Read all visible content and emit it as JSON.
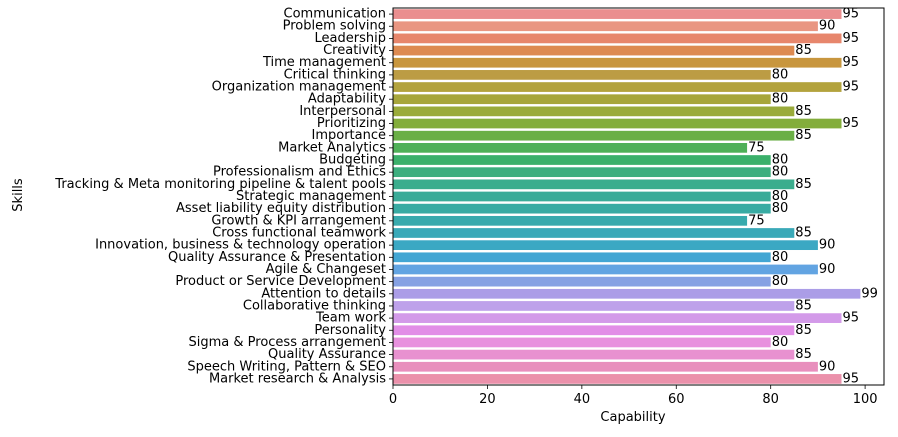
{
  "chart_data": {
    "type": "bar",
    "orientation": "horizontal",
    "xlabel": "Capability",
    "ylabel": "Skills",
    "xlim": [
      0,
      104
    ],
    "xticks": [
      0,
      20,
      40,
      60,
      80,
      100
    ],
    "grid": false,
    "legend": "none",
    "categories": [
      "Communication",
      "Problem solving",
      "Leadership",
      "Creativity",
      "Time management",
      "Critical thinking",
      "Organization management",
      "Adaptability",
      "Interpersonal",
      "Prioritizing",
      "Importance",
      "Market Analytics",
      "Budgeting",
      "Professionalism and Ethics",
      "Tracking & Meta monitoring pipeline & talent pools",
      "Strategic management",
      "Asset liability equity distribution",
      "Growth & KPI arrangement",
      "Cross functional teamwork",
      "Innovation, business & technology operation",
      "Quality Assurance & Presentation",
      "Agile & Changeset",
      "Product or Service Development",
      "Attention to details",
      "Collaborative thinking",
      "Team work",
      "Personality",
      "Sigma & Process arrangement",
      "Quality Assurance",
      "Speech Writing, Pattern & SEO",
      "Market research & Analysis"
    ],
    "values": [
      95,
      90,
      95,
      85,
      95,
      80,
      95,
      80,
      85,
      95,
      85,
      75,
      80,
      80,
      85,
      80,
      80,
      75,
      85,
      90,
      80,
      90,
      80,
      99,
      85,
      95,
      85,
      80,
      85,
      90,
      95
    ],
    "colors": [
      "#ea8e8f",
      "#e99682",
      "#e7866c",
      "#dd8a51",
      "#c8963e",
      "#bc9c44",
      "#b3a33d",
      "#a7a63b",
      "#9aab3b",
      "#83ad3b",
      "#6aaf46",
      "#4fb058",
      "#3bb06b",
      "#3cae7e",
      "#3bad8d",
      "#3aab98",
      "#38aba3",
      "#38aaad",
      "#3aa9b8",
      "#3ba8c3",
      "#42a6d3",
      "#62a4e2",
      "#86a1e3",
      "#ab9de7",
      "#bea1ea",
      "#d39ae9",
      "#e28ee7",
      "#e891de",
      "#e891d0",
      "#e88fbd",
      "#eb91ab"
    ]
  }
}
